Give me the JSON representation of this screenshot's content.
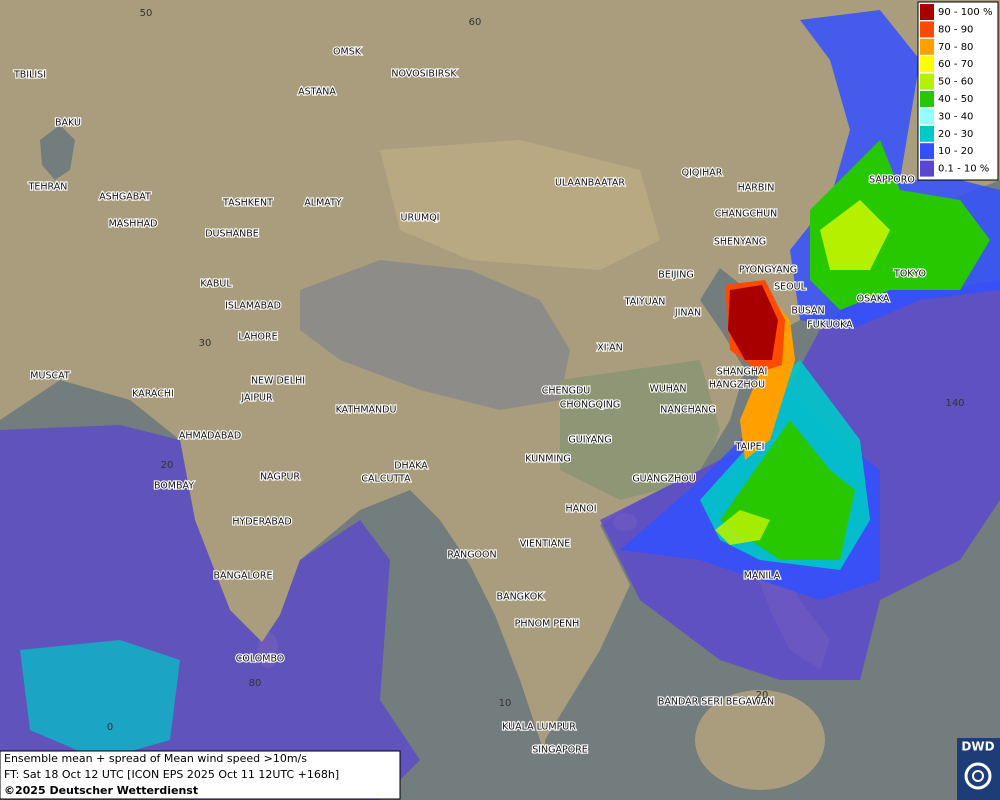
{
  "map": {
    "cities": [
      "TBILISI",
      "BAKU",
      "TEHRAN",
      "ASHGABAT",
      "MASHHAD",
      "OMSK",
      "ASTANA",
      "NOVOSIBIRSK",
      "TASHKENT",
      "ALMATY",
      "DUSHANBE",
      "URUMQI",
      "ULAANBAATAR",
      "QIQIHAR",
      "HARBIN",
      "CHANGCHUN",
      "SHENYANG",
      "BEIJING",
      "PYONGYANG",
      "SEOUL",
      "TAIYUAN",
      "JINAN",
      "BUSAN",
      "FUKUOKA",
      "OSAKA",
      "TOKYO",
      "SAPPORO",
      "KABUL",
      "ISLAMABAD",
      "LAHORE",
      "XI'AN",
      "MUSCAT",
      "KARACHI",
      "NEW DELHI",
      "JAIPUR",
      "KATHMANDU",
      "CHENGDU",
      "CHONGQING",
      "WUHAN",
      "SHANGHAI",
      "HANGZHOU",
      "NANCHANG",
      "AHMADABAD",
      "GUIYANG",
      "TAIPEI",
      "DHAKA",
      "KUNMING",
      "NAGPUR",
      "CALCUTTA",
      "GUANGZHOU",
      "BOMBAY",
      "HYDERABAD",
      "HANOI",
      "RANGOON",
      "VIENTIANE",
      "BANGALORE",
      "MANILA",
      "BANGKOK",
      "PHNOM PENH",
      "COLOMBO",
      "BANDAR SERI BEGAWAN",
      "KUALA LUMPUR",
      "SINGAPORE"
    ],
    "grid_labels": [
      "50",
      "60",
      "30",
      "20",
      "140",
      "80",
      "0",
      "10",
      "20"
    ],
    "legend": [
      {
        "label": "90 - 100 %",
        "color": "#a80000"
      },
      {
        "label": "80 - 90",
        "color": "#ff4a00"
      },
      {
        "label": "70 - 80",
        "color": "#ffa000"
      },
      {
        "label": "60 - 70",
        "color": "#ffff00"
      },
      {
        "label": "50 - 60",
        "color": "#b4f000"
      },
      {
        "label": "40 - 50",
        "color": "#28c800"
      },
      {
        "label": "30 - 40",
        "color": "#96ffff"
      },
      {
        "label": "20 - 30",
        "color": "#00c8c8"
      },
      {
        "label": "10 - 20",
        "color": "#3250ff"
      },
      {
        "label": "0.1 - 10 %",
        "color": "#5a46d2"
      }
    ],
    "caption": [
      "Ensemble mean + spread of Mean wind speed >10m/s",
      "FT: Sat 18 Oct 12 UTC [ICON EPS 2025 Oct 11 12UTC +168h]",
      "©2025 Deutscher Wetterdienst"
    ],
    "logo": "DWD"
  }
}
